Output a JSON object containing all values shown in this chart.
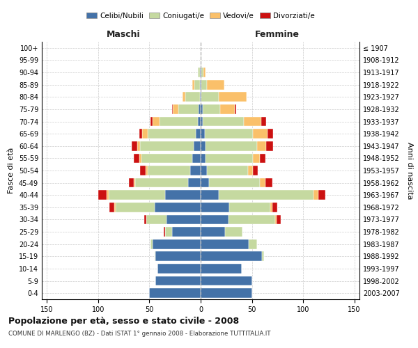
{
  "age_groups": [
    "100+",
    "95-99",
    "90-94",
    "85-89",
    "80-84",
    "75-79",
    "70-74",
    "65-69",
    "60-64",
    "55-59",
    "50-54",
    "45-49",
    "40-44",
    "35-39",
    "30-34",
    "25-29",
    "20-24",
    "15-19",
    "10-14",
    "5-9",
    "0-4"
  ],
  "birth_years": [
    "≤ 1907",
    "1908-1912",
    "1913-1917",
    "1918-1922",
    "1923-1927",
    "1928-1932",
    "1933-1937",
    "1938-1942",
    "1943-1947",
    "1948-1952",
    "1953-1957",
    "1958-1962",
    "1963-1967",
    "1968-1972",
    "1973-1977",
    "1978-1982",
    "1983-1987",
    "1988-1992",
    "1993-1997",
    "1998-2002",
    "2003-2007"
  ],
  "male_celibi": [
    0,
    0,
    1,
    1,
    1,
    2,
    3,
    5,
    7,
    8,
    10,
    12,
    35,
    45,
    33,
    28,
    47,
    44,
    42,
    44,
    50
  ],
  "male_coniugati": [
    0,
    0,
    2,
    5,
    14,
    20,
    37,
    47,
    52,
    50,
    42,
    52,
    55,
    38,
    20,
    7,
    2,
    1,
    0,
    0,
    0
  ],
  "male_vedovi": [
    0,
    0,
    0,
    2,
    3,
    5,
    7,
    5,
    3,
    2,
    2,
    1,
    2,
    1,
    0,
    0,
    0,
    0,
    0,
    0,
    0
  ],
  "male_divorziati": [
    0,
    0,
    0,
    0,
    0,
    1,
    2,
    3,
    5,
    5,
    5,
    5,
    8,
    5,
    2,
    1,
    0,
    0,
    0,
    0,
    0
  ],
  "female_nubili": [
    0,
    0,
    1,
    1,
    1,
    2,
    2,
    4,
    5,
    5,
    6,
    8,
    18,
    28,
    27,
    24,
    47,
    60,
    40,
    50,
    50
  ],
  "female_coniugate": [
    0,
    1,
    2,
    5,
    17,
    17,
    40,
    47,
    50,
    46,
    40,
    50,
    92,
    40,
    46,
    17,
    8,
    2,
    0,
    0,
    0
  ],
  "female_vedove": [
    0,
    0,
    2,
    17,
    27,
    14,
    17,
    14,
    9,
    7,
    5,
    5,
    5,
    2,
    1,
    0,
    0,
    0,
    0,
    0,
    0
  ],
  "female_divorziate": [
    0,
    0,
    0,
    0,
    0,
    2,
    5,
    6,
    7,
    5,
    5,
    7,
    7,
    5,
    4,
    0,
    0,
    0,
    0,
    0,
    0
  ],
  "color_celibi": "#4472a8",
  "color_coniugati": "#c5d9a0",
  "color_vedovi": "#fac06a",
  "color_divorziati": "#cc1111",
  "xlim": 155,
  "title": "Popolazione per età, sesso e stato civile - 2008",
  "subtitle": "COMUNE DI MARLENGO (BZ) - Dati ISTAT 1° gennaio 2008 - Elaborazione TUTTITALIA.IT",
  "ylabel_left": "Fasce di età",
  "ylabel_right": "Anni di nascita",
  "label_maschi": "Maschi",
  "label_femmine": "Femmine",
  "legend_labels": [
    "Celibi/Nubili",
    "Coniugati/e",
    "Vedovi/e",
    "Divorziati/e"
  ]
}
